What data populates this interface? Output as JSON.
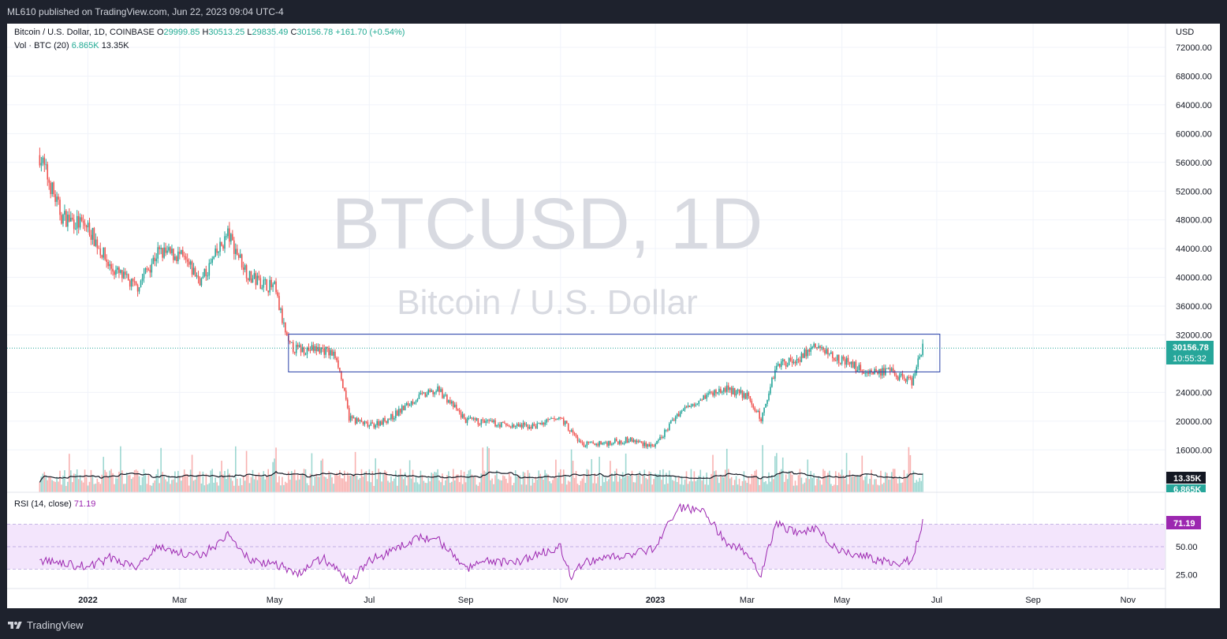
{
  "header": {
    "published": "ML610 published on TradingView.com, Jun 22, 2023 09:04 UTC-4"
  },
  "footer": {
    "brand": "TradingView",
    "logo_icon": "tradingview-logo-icon"
  },
  "watermark": {
    "symbol": "BTCUSD, 1D",
    "name": "Bitcoin / U.S. Dollar"
  },
  "legend": {
    "symbol": "Bitcoin / U.S. Dollar, 1D, COINBASE",
    "o_label": "O",
    "o": "29999.85",
    "h_label": "H",
    "h": "30513.25",
    "l_label": "L",
    "l": "29835.49",
    "c_label": "C",
    "c": "30156.78",
    "change": "+161.70 (+0.54%)",
    "vol_label": "Vol · BTC (20)",
    "vol": "6.865K",
    "vol_ma": "13.35K",
    "rsi_label": "RSI (14, close)",
    "rsi": "71.19"
  },
  "price_axis": {
    "currency": "USD",
    "ticks": [
      "72000.00",
      "68000.00",
      "64000.00",
      "60000.00",
      "56000.00",
      "52000.00",
      "48000.00",
      "44000.00",
      "40000.00",
      "36000.00",
      "32000.00",
      "24000.00",
      "20000.00",
      "16000.00"
    ]
  },
  "rsi_axis": {
    "ticks": [
      "50.00",
      "25.00"
    ]
  },
  "badges": {
    "price": "30156.78",
    "countdown": "10:55:32",
    "vol_ma": "13.35K",
    "vol": "6.865K",
    "rsi": "71.19"
  },
  "x_axis": {
    "ticks": [
      "2022",
      "Mar",
      "May",
      "Jul",
      "Sep",
      "Nov",
      "2023",
      "Mar",
      "May",
      "Jul",
      "Sep",
      "Nov"
    ]
  },
  "colors": {
    "up": "#26a69a",
    "down": "#ef5350",
    "rsi": "#9c27b0",
    "box": "#2841a8",
    "rsi_band": "#f3e5fc",
    "text_dark": "#131722"
  },
  "chart_data": {
    "type": "line",
    "title": "Bitcoin / U.S. Dollar, 1D, COINBASE",
    "x": [
      "2021-12-01",
      "2021-12-15",
      "2022-01-01",
      "2022-01-15",
      "2022-02-01",
      "2022-02-15",
      "2022-03-01",
      "2022-03-15",
      "2022-04-01",
      "2022-04-15",
      "2022-05-01",
      "2022-05-10",
      "2022-05-15",
      "2022-06-01",
      "2022-06-10",
      "2022-06-18",
      "2022-07-01",
      "2022-07-15",
      "2022-08-01",
      "2022-08-15",
      "2022-09-01",
      "2022-09-15",
      "2022-10-01",
      "2022-10-15",
      "2022-11-01",
      "2022-11-08",
      "2022-11-15",
      "2022-12-01",
      "2022-12-15",
      "2023-01-01",
      "2023-01-15",
      "2023-02-01",
      "2023-02-15",
      "2023-03-01",
      "2023-03-10",
      "2023-03-20",
      "2023-04-01",
      "2023-04-14",
      "2023-05-01",
      "2023-05-15",
      "2023-06-01",
      "2023-06-15",
      "2023-06-22"
    ],
    "series": [
      {
        "values": [
          57000,
          48500,
          47000,
          41500,
          38500,
          43500,
          43000,
          39500,
          46000,
          40000,
          38500,
          30500,
          30000,
          30000,
          29000,
          20500,
          19300,
          20500,
          23300,
          24300,
          20100,
          19800,
          19300,
          19300,
          20500,
          18500,
          16700,
          17000,
          17400,
          16500,
          21000,
          23500,
          24500,
          23500,
          20200,
          28000,
          28500,
          30400,
          28500,
          27000,
          26800,
          25500,
          30156.78
        ]
      }
    ],
    "volume": {
      "name": "Vol · BTC (20)",
      "last": 6865,
      "ma": 13350
    },
    "rsi": {
      "name": "RSI (14, close)",
      "last": 71.19,
      "upper": 70,
      "lower": 30,
      "values": [
        38,
        35,
        32,
        40,
        33,
        50,
        45,
        42,
        60,
        38,
        35,
        30,
        25,
        40,
        30,
        18,
        38,
        45,
        58,
        55,
        30,
        38,
        35,
        42,
        50,
        22,
        35,
        40,
        42,
        48,
        85,
        82,
        55,
        45,
        25,
        72,
        62,
        66,
        45,
        42,
        35,
        38,
        71.19
      ]
    },
    "range_box": {
      "top": 32100,
      "bottom": 26850,
      "x_start": "2022-05-10",
      "x_end": "2023-07-03"
    },
    "ylim": [
      13000,
      72000
    ],
    "ylabel": "USD"
  }
}
